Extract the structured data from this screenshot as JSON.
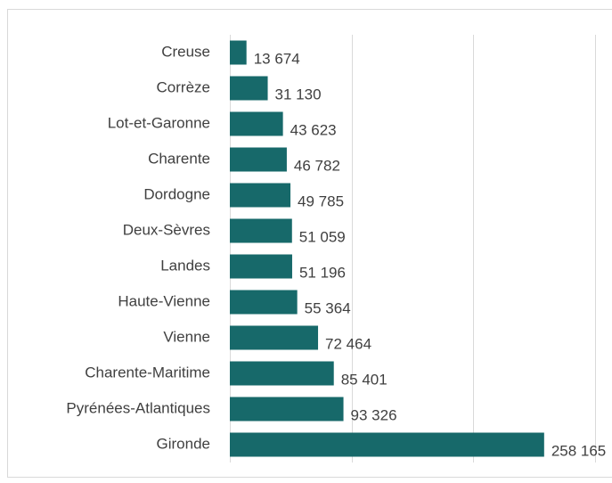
{
  "chart_data": {
    "type": "hbar",
    "categories": [
      "Creuse",
      "Corrèze",
      "Lot-et-Garonne",
      "Charente",
      "Dordogne",
      "Deux-Sèvres",
      "Landes",
      "Haute-Vienne",
      "Vienne",
      "Charente-Maritime",
      "Pyrénées-Atlantiques",
      "Gironde"
    ],
    "values": [
      13674,
      31130,
      43623,
      46782,
      49785,
      51059,
      51196,
      55364,
      72464,
      85401,
      93326,
      258165
    ],
    "value_labels": [
      "13 674",
      "31 130",
      "43 623",
      "46 782",
      "49 785",
      "51 059",
      "51 196",
      "55 364",
      "72 464",
      "85 401",
      "93 326",
      "258 165"
    ],
    "color": "#17696a",
    "xlim": [
      0,
      300000
    ],
    "xticks": [
      0,
      100000,
      200000,
      300000
    ],
    "grid": true
  }
}
